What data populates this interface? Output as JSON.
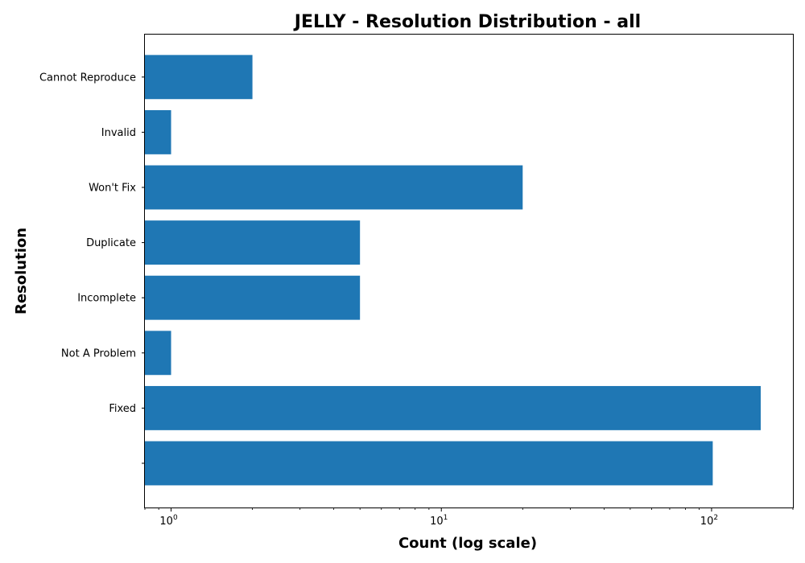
{
  "chart_data": {
    "type": "bar",
    "orientation": "horizontal",
    "title": "JELLY - Resolution Distribution - all",
    "xlabel": "Count (log scale)",
    "ylabel": "Resolution",
    "x_scale": "log",
    "xlim": [
      0.8,
      200
    ],
    "grid": false,
    "color": "#1f77b4",
    "categories": [
      "",
      "Fixed",
      "Not A Problem",
      "Incomplete",
      "Duplicate",
      "Won't Fix",
      "Invalid",
      "Cannot Reproduce"
    ],
    "values": [
      101,
      152,
      1,
      5,
      5,
      20,
      1,
      2
    ],
    "x_ticks": [
      {
        "value": 1,
        "base": "10",
        "exp": "0"
      },
      {
        "value": 10,
        "base": "10",
        "exp": "1"
      },
      {
        "value": 100,
        "base": "10",
        "exp": "2"
      }
    ]
  }
}
